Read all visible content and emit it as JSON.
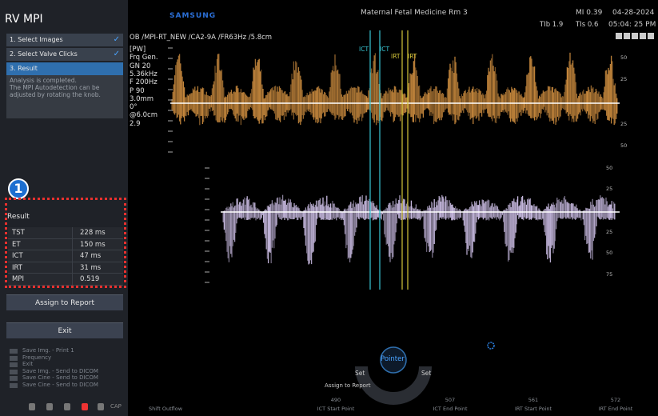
{
  "panel": {
    "title": "RV MPI",
    "steps": [
      "1. Select Images",
      "2. Select Valve Clicks",
      "3. Result"
    ],
    "description": [
      "Analysis is completed.",
      "The MPI Autodetection can be",
      "adjusted by rotating the knob."
    ],
    "badge": "1",
    "result": {
      "title": "Result",
      "rows": [
        [
          "TST",
          "228 ms"
        ],
        [
          "ET",
          "150 ms"
        ],
        [
          "ICT",
          "47 ms"
        ],
        [
          "IRT",
          "31 ms"
        ],
        [
          "MPI",
          "0.519"
        ]
      ]
    },
    "buttons": [
      "Assign to Report",
      "Exit"
    ],
    "hints": [
      "Save Img. - Print 1",
      "Frequency",
      "Exit",
      "Save Img. - Send to DICOM",
      "Save Cine - Send to DICOM",
      "Save Cine - Send to DICOM"
    ],
    "footer": "CAP"
  },
  "header": {
    "brand": "SAMSUNG",
    "room": "Maternal Fetal Medicine Rm 3",
    "mi": "MI 0.39",
    "date": "04-28-2024",
    "tib": "TIb 1.9",
    "tis": "TIs 0.6",
    "time": "05:04: 25 PM",
    "preset": "OB /MPI-RT_NEW /CA2-9A /FR63Hz /5.8cm"
  },
  "params": [
    "[PW]",
    "Frq  Gen.",
    "GN  20",
    "5.36kHz",
    "F    200Hz",
    "P     90",
    "3.0mm",
    "0°",
    "@6.0cm",
    "2.9"
  ],
  "markers": [
    "ICT",
    "ICT",
    "IRT",
    "IRT"
  ],
  "scale_upper": [
    "50",
    "25",
    "25",
    "50"
  ],
  "scale_lower": [
    "50",
    "25",
    "25",
    "50",
    "75"
  ],
  "control": {
    "center": "Pointer",
    "left": "Set",
    "right": "Set",
    "bottom": "Assign to Report"
  },
  "bottom": {
    "shift": "Shift Outflow",
    "points": [
      {
        "value": "490",
        "label": "ICT Start Point"
      },
      {
        "value": "507",
        "label": "ICT End Point"
      },
      {
        "value": "561",
        "label": "IRT Start Point"
      },
      {
        "value": "572",
        "label": "IRT End Point"
      }
    ]
  }
}
